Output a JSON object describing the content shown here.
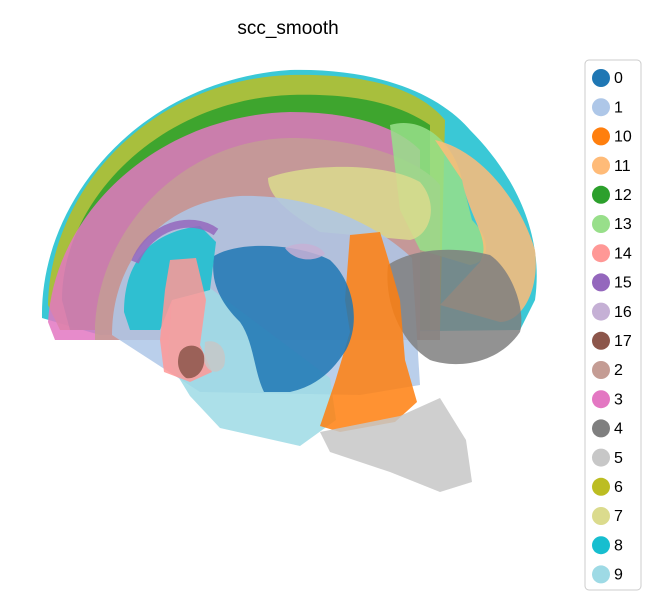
{
  "chart_data": {
    "type": "scatter",
    "title": "scc_smooth",
    "series": [
      {
        "name": "0",
        "color": "#1f77b4"
      },
      {
        "name": "1",
        "color": "#aec7e8"
      },
      {
        "name": "10",
        "color": "#ff7f0e"
      },
      {
        "name": "11",
        "color": "#ffbb78"
      },
      {
        "name": "12",
        "color": "#2ca02c"
      },
      {
        "name": "13",
        "color": "#98df8a"
      },
      {
        "name": "14",
        "color": "#ff9896"
      },
      {
        "name": "15",
        "color": "#9467bd"
      },
      {
        "name": "16",
        "color": "#c5b0d5"
      },
      {
        "name": "17",
        "color": "#8c564b"
      },
      {
        "name": "2",
        "color": "#c49c94"
      },
      {
        "name": "3",
        "color": "#e377c2"
      },
      {
        "name": "4",
        "color": "#7f7f7f"
      },
      {
        "name": "5",
        "color": "#c7c7c7"
      },
      {
        "name": "6",
        "color": "#bcbd22"
      },
      {
        "name": "7",
        "color": "#dbdb8d"
      },
      {
        "name": "8",
        "color": "#17becf"
      },
      {
        "name": "9",
        "color": "#9edae5"
      }
    ]
  }
}
